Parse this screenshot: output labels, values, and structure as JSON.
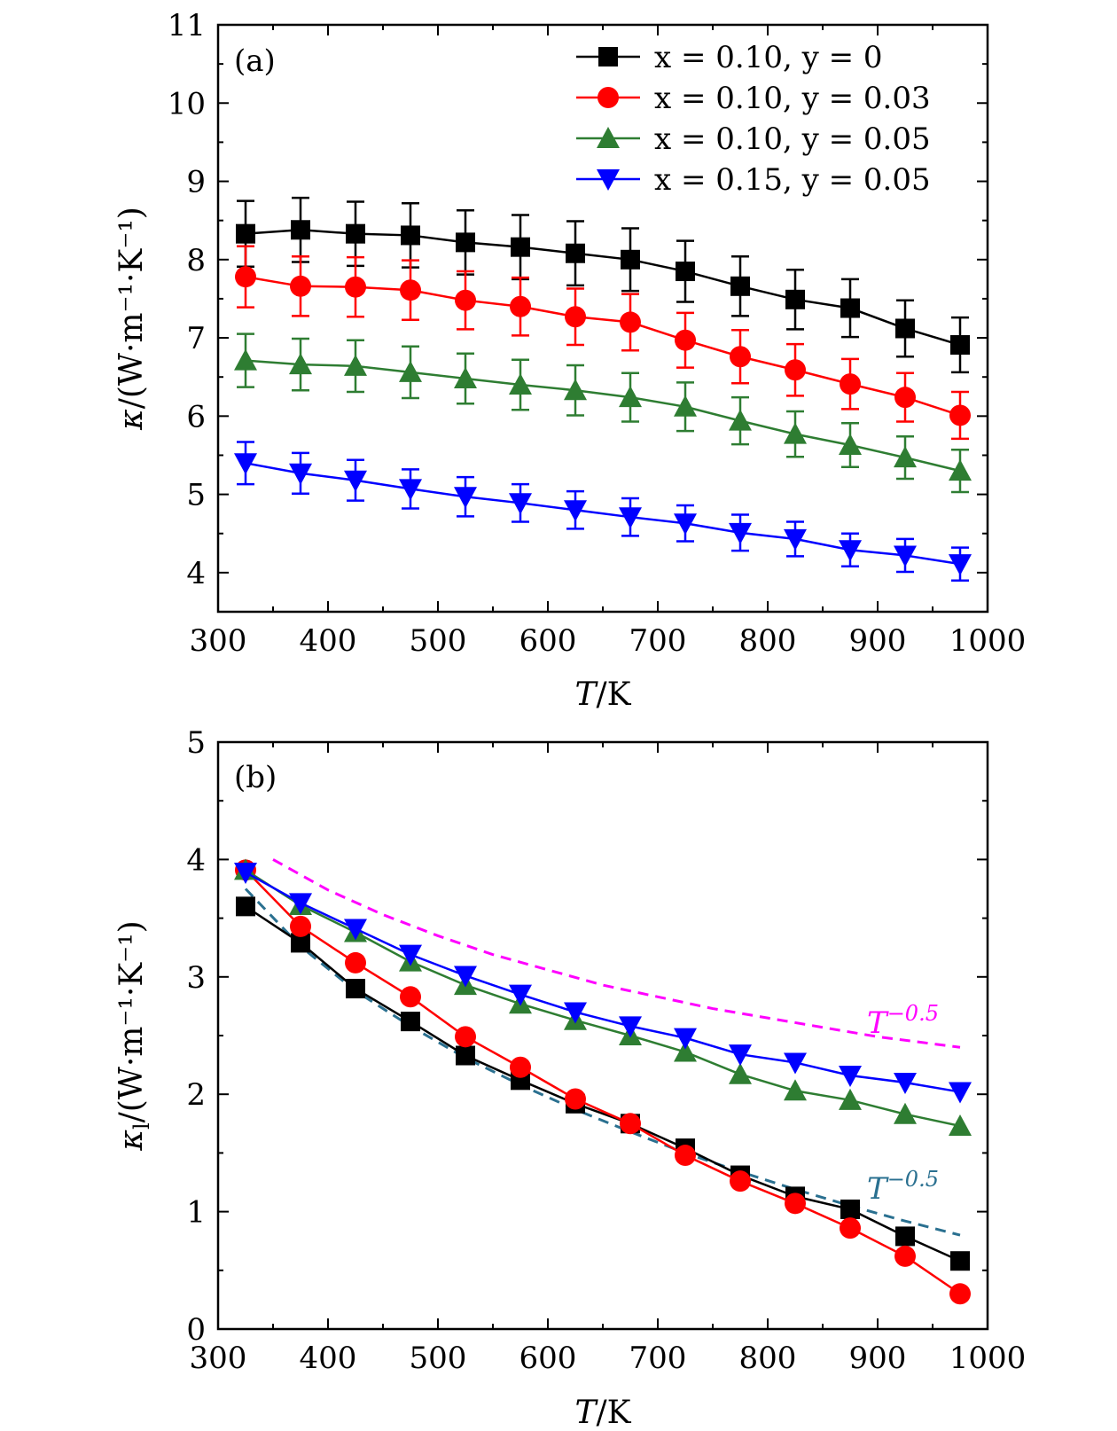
{
  "chart_data": [
    {
      "type": "line",
      "panel_label": "(a)",
      "xlabel_symbol": "T",
      "xlabel_unit": "/K",
      "ylabel_symbol": "κ",
      "ylabel_unit": "/(W·m⁻¹·K⁻¹)",
      "xlim": [
        300,
        1000
      ],
      "ylim": [
        3.5,
        11
      ],
      "xticks": [
        "300",
        "400",
        "500",
        "600",
        "700",
        "800",
        "900",
        "1000"
      ],
      "yticks": [
        "4",
        "5",
        "6",
        "7",
        "8",
        "9",
        "10",
        "11"
      ],
      "legend_position": "top-right",
      "x": [
        325,
        375,
        425,
        475,
        525,
        575,
        625,
        675,
        725,
        775,
        825,
        875,
        925,
        975
      ],
      "series": [
        {
          "name": "x = 0.10, y = 0",
          "color": "#000000",
          "marker": "square",
          "values": [
            8.33,
            8.38,
            8.33,
            8.31,
            8.22,
            8.16,
            8.08,
            8.0,
            7.85,
            7.66,
            7.49,
            7.38,
            7.12,
            6.91
          ],
          "error": [
            0.42,
            0.41,
            0.41,
            0.41,
            0.41,
            0.41,
            0.41,
            0.4,
            0.39,
            0.38,
            0.38,
            0.37,
            0.36,
            0.35
          ]
        },
        {
          "name": "x = 0.10, y = 0.03",
          "color": "#ff0000",
          "marker": "circle",
          "values": [
            7.78,
            7.66,
            7.65,
            7.61,
            7.48,
            7.4,
            7.27,
            7.2,
            6.97,
            6.76,
            6.59,
            6.41,
            6.24,
            6.01
          ],
          "error": [
            0.39,
            0.38,
            0.38,
            0.38,
            0.37,
            0.37,
            0.36,
            0.36,
            0.35,
            0.34,
            0.33,
            0.32,
            0.31,
            0.3
          ]
        },
        {
          "name": "x = 0.10, y = 0.05",
          "color": "#2e7d32",
          "marker": "triangle-up",
          "values": [
            6.71,
            6.66,
            6.64,
            6.56,
            6.48,
            6.4,
            6.33,
            6.24,
            6.12,
            5.94,
            5.77,
            5.63,
            5.47,
            5.3
          ],
          "error": [
            0.34,
            0.33,
            0.33,
            0.33,
            0.32,
            0.32,
            0.32,
            0.31,
            0.31,
            0.3,
            0.29,
            0.28,
            0.27,
            0.27
          ]
        },
        {
          "name": "x = 0.15, y = 0.05",
          "color": "#0000ff",
          "marker": "triangle-down",
          "values": [
            5.4,
            5.27,
            5.18,
            5.07,
            4.97,
            4.89,
            4.8,
            4.71,
            4.63,
            4.51,
            4.43,
            4.29,
            4.22,
            4.11
          ],
          "error": [
            0.27,
            0.26,
            0.26,
            0.25,
            0.25,
            0.24,
            0.24,
            0.24,
            0.23,
            0.23,
            0.22,
            0.21,
            0.21,
            0.21
          ]
        }
      ]
    },
    {
      "type": "line",
      "panel_label": "(b)",
      "xlabel_symbol": "T",
      "xlabel_unit": "/K",
      "ylabel_symbol": "κ",
      "ylabel_subscript": "l",
      "ylabel_unit": "/(W·m⁻¹·K⁻¹)",
      "xlim": [
        300,
        1000
      ],
      "ylim": [
        0,
        5
      ],
      "xticks": [
        "300",
        "400",
        "500",
        "600",
        "700",
        "800",
        "900",
        "1000"
      ],
      "yticks": [
        "0",
        "1",
        "2",
        "3",
        "4",
        "5"
      ],
      "x": [
        325,
        375,
        425,
        475,
        525,
        575,
        625,
        675,
        725,
        775,
        825,
        875,
        925,
        975
      ],
      "series": [
        {
          "color": "#000000",
          "marker": "square",
          "values": [
            3.6,
            3.29,
            2.9,
            2.62,
            2.33,
            2.12,
            1.92,
            1.75,
            1.54,
            1.31,
            1.13,
            1.02,
            0.79,
            0.58
          ]
        },
        {
          "color": "#ff0000",
          "marker": "circle",
          "values": [
            3.91,
            3.43,
            3.12,
            2.83,
            2.49,
            2.23,
            1.96,
            1.75,
            1.48,
            1.26,
            1.07,
            0.86,
            0.62,
            0.3
          ]
        },
        {
          "color": "#2e7d32",
          "marker": "triangle-up",
          "values": [
            3.91,
            3.61,
            3.38,
            3.13,
            2.93,
            2.77,
            2.63,
            2.5,
            2.36,
            2.17,
            2.03,
            1.95,
            1.83,
            1.73
          ]
        },
        {
          "color": "#0000ff",
          "marker": "triangle-down",
          "values": [
            3.89,
            3.63,
            3.41,
            3.19,
            3.01,
            2.85,
            2.7,
            2.58,
            2.48,
            2.34,
            2.27,
            2.16,
            2.1,
            2.02
          ]
        }
      ],
      "reference_curves": [
        {
          "label_base": "T",
          "label_exp": "−0.5",
          "color": "#ff00ff",
          "style": "dashed",
          "x": [
            350,
            400,
            450,
            500,
            550,
            600,
            650,
            700,
            750,
            800,
            850,
            900,
            950,
            975
          ],
          "values": [
            4.0,
            3.74,
            3.53,
            3.35,
            3.19,
            3.06,
            2.93,
            2.83,
            2.73,
            2.65,
            2.57,
            2.49,
            2.43,
            2.4
          ]
        },
        {
          "label_base": "T",
          "label_exp": "−0.5",
          "color": "#2a7090",
          "style": "dashed",
          "x": [
            325,
            375,
            425,
            475,
            525,
            575,
            625,
            675,
            725,
            775,
            825,
            875,
            925,
            975
          ],
          "values": [
            3.75,
            3.26,
            2.88,
            2.58,
            2.31,
            2.08,
            1.87,
            1.68,
            1.5,
            1.34,
            1.19,
            1.05,
            0.92,
            0.8
          ]
        }
      ]
    }
  ]
}
